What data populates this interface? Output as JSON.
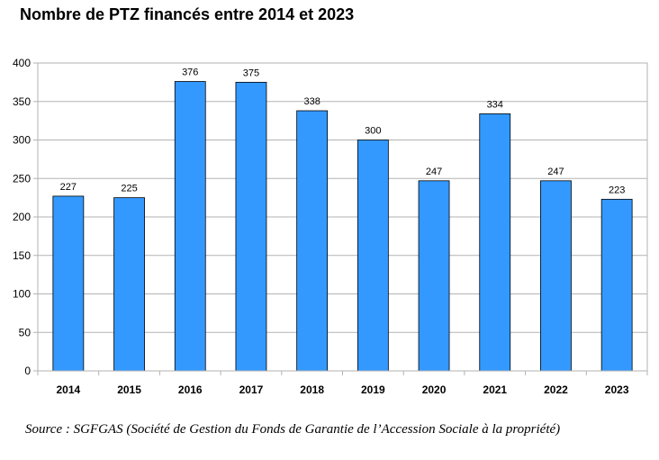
{
  "chart_data": {
    "type": "bar",
    "title": "Nombre de PTZ financés entre 2014 et 2023",
    "categories": [
      "2014",
      "2015",
      "2016",
      "2017",
      "2018",
      "2019",
      "2020",
      "2021",
      "2022",
      "2023"
    ],
    "values": [
      227,
      225,
      376,
      375,
      338,
      300,
      247,
      334,
      247,
      223
    ],
    "xlabel": "",
    "ylabel": "",
    "ylim": [
      0,
      400
    ],
    "yticks": [
      0,
      50,
      100,
      150,
      200,
      250,
      300,
      350,
      400
    ],
    "grid": true,
    "legend": "none",
    "bar_color": "#3399ff",
    "source": "Source : SGFGAS (Société de Gestion du Fonds de Garantie de l’Accession Sociale à la propriété)"
  }
}
